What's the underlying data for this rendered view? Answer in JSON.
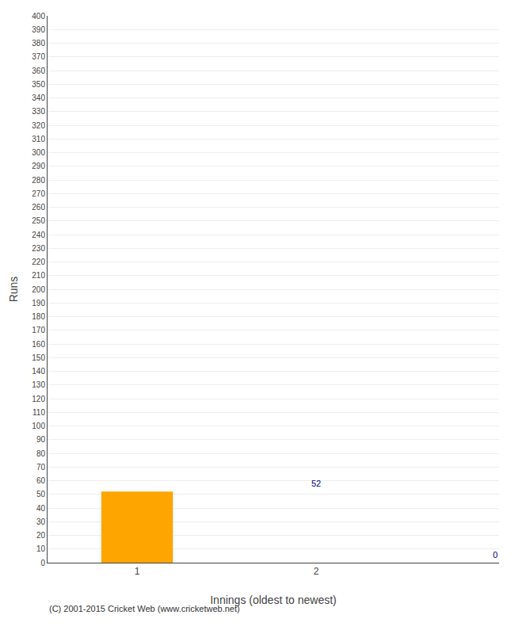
{
  "chart_data": {
    "type": "bar",
    "categories": [
      "1",
      "2"
    ],
    "values": [
      52,
      0
    ],
    "color": "#FFA500",
    "xlabel": "Innings (oldest to newest)",
    "ylabel": "Runs",
    "ylim": [
      0,
      400
    ],
    "yticks": [
      0,
      10,
      20,
      30,
      40,
      50,
      60,
      70,
      80,
      90,
      100,
      110,
      120,
      130,
      140,
      150,
      160,
      170,
      180,
      190,
      200,
      210,
      220,
      230,
      240,
      250,
      260,
      270,
      280,
      290,
      300,
      310,
      320,
      330,
      340,
      350,
      360,
      370,
      380,
      390,
      400
    ],
    "grid": true,
    "data_labels": true,
    "annotations": [
      "(C) 2001-2015 Cricket Web (www.cricketweb.net)"
    ]
  }
}
